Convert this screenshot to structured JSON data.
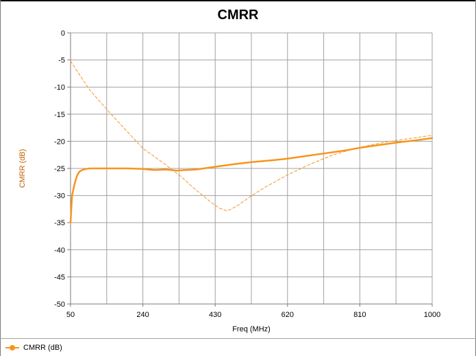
{
  "chart_data": {
    "type": "line",
    "title": "CMRR",
    "xlabel": "Freq (MHz)",
    "ylabel": "CMRR (dB)",
    "xlim": [
      50,
      1000
    ],
    "ylim": [
      -50,
      0
    ],
    "xticks": [
      50,
      240,
      430,
      620,
      810,
      1000
    ],
    "yticks": [
      0,
      -5,
      -10,
      -15,
      -20,
      -25,
      -30,
      -35,
      -40,
      -45,
      -50
    ],
    "grid": true,
    "legend_position": "bottom-left",
    "colors": {
      "series": "#f7941d",
      "grid": "#a0a0a0",
      "axis": "#7a7a7a",
      "axis_label": "#c06000"
    },
    "series": [
      {
        "name": "CMRR (dB)",
        "style": "solid",
        "x": [
          50,
          52,
          54,
          57,
          60,
          64,
          68,
          73,
          80,
          90,
          100,
          120,
          150,
          200,
          240,
          270,
          300,
          330,
          350,
          380,
          400,
          430,
          480,
          530,
          580,
          620,
          670,
          720,
          770,
          810,
          860,
          910,
          960,
          1000
        ],
        "y": [
          -35,
          -32.5,
          -30,
          -29,
          -28,
          -27,
          -26.2,
          -25.6,
          -25.3,
          -25.1,
          -25,
          -25,
          -25,
          -25,
          -25.1,
          -25.3,
          -25.2,
          -25.4,
          -25.3,
          -25.2,
          -25,
          -24.7,
          -24.2,
          -23.8,
          -23.5,
          -23.2,
          -22.7,
          -22.2,
          -21.7,
          -21.2,
          -20.7,
          -20.2,
          -19.8,
          -19.4
        ]
      },
      {
        "name": "",
        "style": "dashed",
        "x": [
          50,
          100,
          150,
          200,
          240,
          300,
          340,
          380,
          420,
          440,
          460,
          470,
          490,
          520,
          560,
          620,
          680,
          740,
          810,
          880,
          940,
          1000
        ],
        "y": [
          -5.2,
          -10.5,
          -14.5,
          -18.3,
          -21.3,
          -24.3,
          -26.5,
          -29,
          -31.3,
          -32.3,
          -32.8,
          -32.6,
          -31.8,
          -30.3,
          -28.5,
          -26.2,
          -24.2,
          -22.5,
          -21.1,
          -20.1,
          -19.5,
          -18.9
        ]
      }
    ]
  }
}
